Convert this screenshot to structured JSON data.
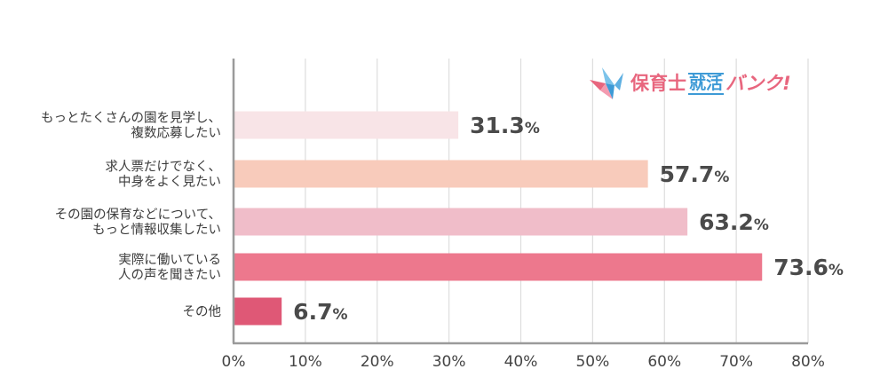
{
  "brand": {
    "logo_part1": "保育士",
    "logo_part2": "就活",
    "logo_part3": "バンク!",
    "colors": {
      "pink": "#e8667e",
      "blue": "#3d9ad6",
      "light_blue": "#7cc3ea"
    }
  },
  "chart_data": {
    "type": "bar",
    "orientation": "horizontal",
    "title": "",
    "xlabel": "",
    "ylabel": "",
    "xlim": [
      0,
      80
    ],
    "ticks": [
      "0%",
      "10%",
      "20%",
      "30%",
      "40%",
      "50%",
      "60%",
      "70%",
      "80%"
    ],
    "grid": true,
    "categories": [
      [
        "もっとたくさんの園を見学し、",
        "複数応募したい"
      ],
      [
        "求人票だけでなく、",
        "中身をよく見たい"
      ],
      [
        "その園の保育などについて、",
        "もっと情報収集したい"
      ],
      [
        "実際に働いている",
        "人の声を聞きたい"
      ],
      [
        "その他"
      ]
    ],
    "values": [
      31.3,
      57.7,
      63.2,
      73.6,
      6.7
    ],
    "value_labels": [
      "31.3",
      "57.7",
      "63.2",
      "73.6",
      "6.7"
    ],
    "value_suffix": "%",
    "bar_colors": [
      "#f8e4e7",
      "#f8cbbb",
      "#f0bdc9",
      "#ed788d",
      "#df5876"
    ],
    "axis_color": "#9a9a9a",
    "grid_color": "#dddddd"
  }
}
